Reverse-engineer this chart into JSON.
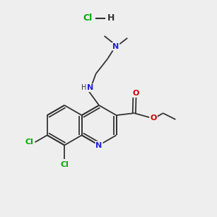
{
  "bg_color": "#eeeeee",
  "bond_color": "#333333",
  "N_color": "#2020dd",
  "O_color": "#cc0000",
  "Cl_color": "#00aa00",
  "lw": 1.3,
  "fs": 8.0,
  "figsize": [
    3.0,
    3.0
  ],
  "dpi": 100,
  "notes": "Quinoline with N at bottom, flat top/bottom bonds. 7,8-dichloro, 4-NH-CH2CH2-NMe2, 3-COOEt. HCl salt top."
}
